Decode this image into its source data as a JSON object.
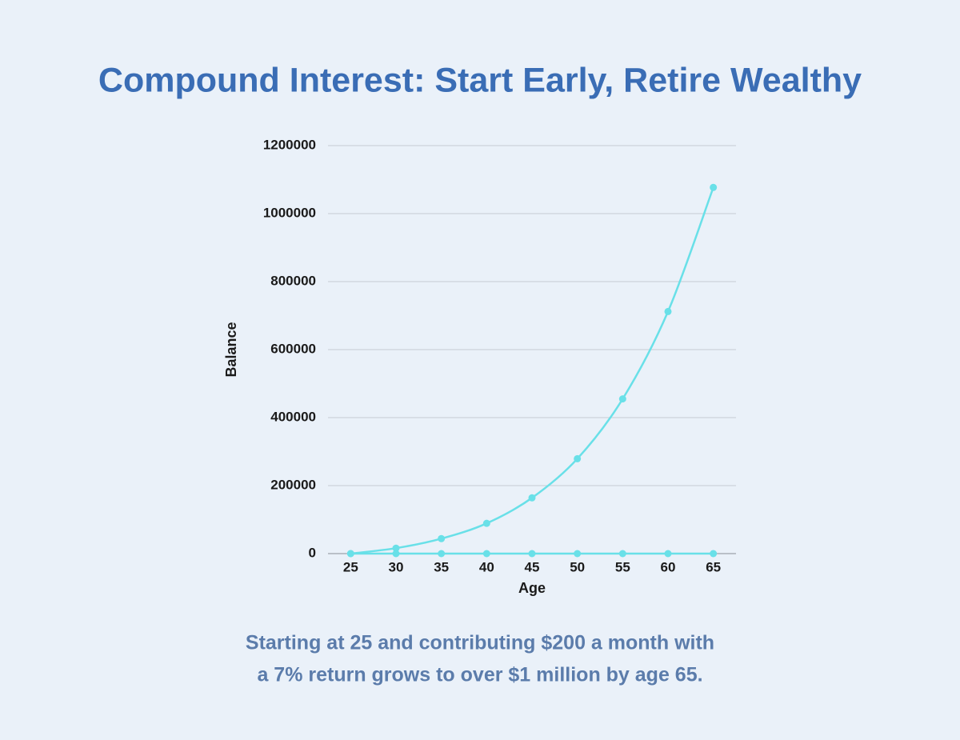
{
  "chart_data": {
    "type": "line",
    "title": "Compound Interest: Start Early, Retire Wealthy",
    "x_label": "Age",
    "y_label": "Balance",
    "x": [
      25,
      30,
      35,
      40,
      45,
      50,
      55,
      60,
      65
    ],
    "series": [
      {
        "color": "#69e0e8",
        "values": [
          0,
          16000,
          44000,
          89000,
          164000,
          279000,
          455000,
          712000,
          1077000
        ]
      },
      {
        "color": "#69e0e8",
        "values": [
          0,
          0,
          0,
          0,
          0,
          0,
          0,
          0,
          0
        ]
      }
    ],
    "xlim": [
      22.5,
      67.5
    ],
    "xticks": [
      25,
      30,
      35,
      40,
      45,
      50,
      55,
      60,
      65
    ],
    "ylim": [
      0,
      1200000
    ],
    "yticks": [
      0,
      200000,
      400000,
      600000,
      800000,
      1000000,
      1200000
    ],
    "grid": true,
    "caption": [
      "Starting at 25 and contributing $200 a month with",
      "a 7% return grows to over $1 million by age 65."
    ]
  }
}
